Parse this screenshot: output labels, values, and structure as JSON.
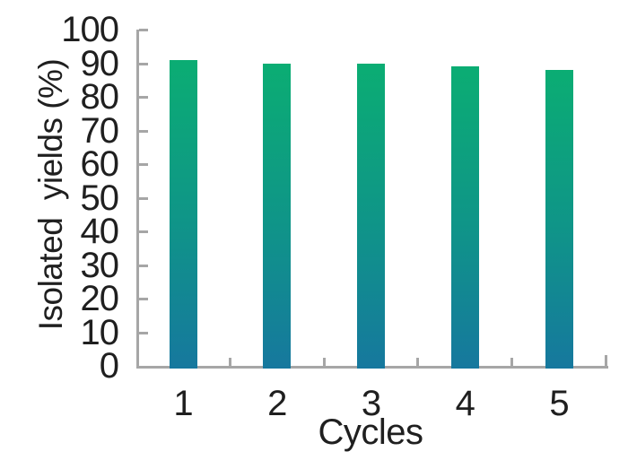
{
  "chart_data": {
    "type": "bar",
    "categories": [
      "1",
      "2",
      "3",
      "4",
      "5"
    ],
    "values": [
      91,
      90,
      90,
      89,
      88
    ],
    "title": "",
    "xlabel": "Cycles",
    "ylabel": "Isolated  yields (%)",
    "ylim": [
      0,
      100
    ],
    "yticks": [
      0,
      10,
      20,
      30,
      40,
      50,
      60,
      70,
      80,
      90,
      100
    ],
    "grid": false,
    "legend": "none",
    "colors": {
      "bar_gradient_top": "#0BAD73",
      "bar_gradient_mid": "#0F9588",
      "bar_gradient_bottom": "#16789E",
      "axis": "#A6A6A6",
      "text": "#1F1F1F",
      "background": "#FFFFFF"
    }
  }
}
